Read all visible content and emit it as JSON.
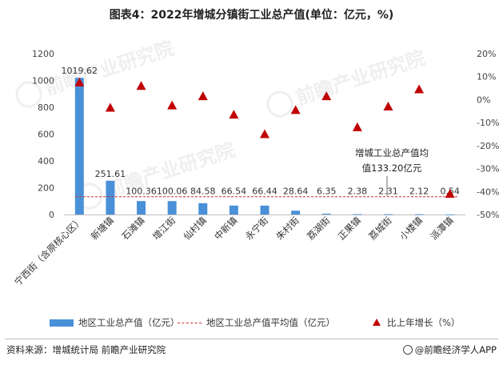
{
  "title": "图表4：2022年增城分镇街工业总产值(单位：亿元，%)",
  "source": "资料来源：增城统计局 前瞻产业研究院",
  "brand": "@前瞻经济学人APP",
  "watermark": "前瞻产业研究院",
  "legend": {
    "bar": "地区工业总产值（亿元）",
    "line": "地区工业总产值平均值（亿元）",
    "tri": "比上年增长（%）"
  },
  "annotation": {
    "line1": "增城工业总产值均",
    "line2": "值133.20亿元"
  },
  "colors": {
    "bar": "#4a90d9",
    "line": "#d0312d",
    "marker": "#c00000"
  },
  "chart_data": {
    "type": "bar",
    "categories": [
      "宁西街（含原核心区）",
      "新塘镇",
      "石滩镇",
      "增江街",
      "仙村镇",
      "中新镇",
      "永宁街",
      "朱村街",
      "荔湖街",
      "正果镇",
      "荔城街",
      "小楼镇",
      "派潭镇"
    ],
    "series": [
      {
        "name": "地区工业总产值（亿元）",
        "values": [
          1019.62,
          251.61,
          100.36,
          100.06,
          84.58,
          66.54,
          66.44,
          28.64,
          6.35,
          2.38,
          2.31,
          2.12,
          0.54
        ],
        "labels": [
          "1019.62",
          "251.61",
          "100.36",
          "100.06",
          "84.58",
          "66.54",
          "66.44",
          "28.64",
          "6.35",
          "2.38",
          "2.31",
          "2.12",
          "0.54"
        ],
        "axis": "left"
      },
      {
        "name": "比上年增长（%）",
        "values": [
          7.5,
          -3.5,
          6.0,
          -2.5,
          1.5,
          -6.5,
          -15.0,
          -4.5,
          1.5,
          -12.0,
          -3.0,
          4.5,
          -41.0
        ],
        "axis": "right"
      }
    ],
    "average": {
      "name": "地区工业总产值平均值（亿元）",
      "value": 133.2
    },
    "ylim": [
      0,
      1200
    ],
    "yticks": [
      "0",
      "200",
      "400",
      "600",
      "800",
      "1000",
      "1200"
    ],
    "y2lim": [
      -50,
      20
    ],
    "y2ticks": [
      "20%",
      "10%",
      "0%",
      "-10%",
      "-20%",
      "-30%",
      "-40%",
      "-50%"
    ],
    "grid": false,
    "legend_position": "bottom"
  }
}
